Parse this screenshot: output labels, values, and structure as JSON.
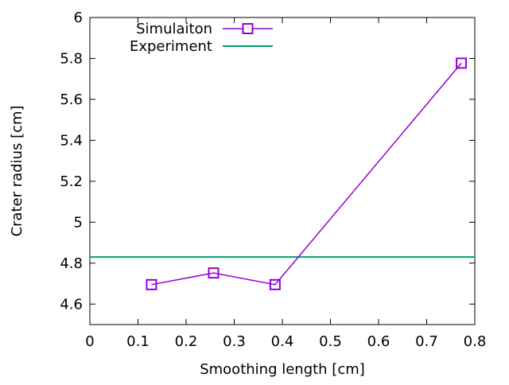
{
  "chart_data": {
    "type": "line",
    "title": "",
    "xlabel": "Smoothing length [cm]",
    "ylabel": "Crater radius [cm]",
    "xlim": [
      0,
      0.8
    ],
    "ylim": [
      4.5,
      6
    ],
    "xticks": [
      "0",
      "0.1",
      "0.2",
      "0.3",
      "0.4",
      "0.5",
      "0.6",
      "0.7",
      "0.8"
    ],
    "yticks": [
      "4.6",
      "4.8",
      "5",
      "5.2",
      "5.4",
      "5.6",
      "5.8",
      "6"
    ],
    "grid": false,
    "legend_position": "top-left",
    "series": [
      {
        "name": "Simulaiton",
        "color": "#9400d3",
        "marker": "open-square",
        "x": [
          0.128,
          0.257,
          0.385,
          0.772
        ],
        "y": [
          4.695,
          4.752,
          4.695,
          5.777
        ]
      },
      {
        "name": "Experiment",
        "color": "#009e73",
        "marker": "none",
        "constant_y": 4.83
      }
    ]
  }
}
